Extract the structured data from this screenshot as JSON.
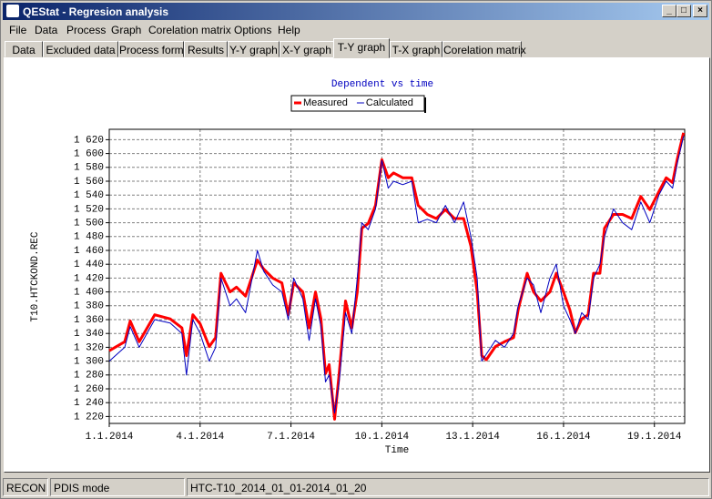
{
  "window": {
    "title": "QEStat - Regresion analysis"
  },
  "menu": [
    "File",
    "Data",
    "Process",
    "Graph",
    "Corelation matrix",
    "Options",
    "Help"
  ],
  "tabs": [
    "Data",
    "Excluded data",
    "Process form",
    "Results",
    "Y-Y graph",
    "X-Y graph",
    "T-Y graph",
    "T-X graph",
    "Corelation matrix"
  ],
  "status": [
    "RECON",
    "PDIS mode",
    "HTC-T10_2014_01_01-2014_01_20"
  ],
  "chart_data": {
    "type": "line",
    "title": "Dependent vs time",
    "x_label": "Time",
    "y_label": "T10.HTCKOND.REC",
    "legend": "top",
    "grid": true,
    "xlim": [
      0,
      19
    ],
    "ylim": [
      1210,
      1635
    ],
    "xticks": [
      {
        "value": 0,
        "label": "1.1.2014"
      },
      {
        "value": 3,
        "label": "4.1.2014"
      },
      {
        "value": 6,
        "label": "7.1.2014"
      },
      {
        "value": 9,
        "label": "10.1.2014"
      },
      {
        "value": 12,
        "label": "13.1.2014"
      },
      {
        "value": 15,
        "label": "16.1.2014"
      },
      {
        "value": 18,
        "label": "19.1.2014"
      }
    ],
    "yticks": [
      {
        "value": 1220,
        "label": "1 220"
      },
      {
        "value": 1240,
        "label": "1 240"
      },
      {
        "value": 1260,
        "label": "1 260"
      },
      {
        "value": 1280,
        "label": "1 280"
      },
      {
        "value": 1300,
        "label": "1 300"
      },
      {
        "value": 1320,
        "label": "1 320"
      },
      {
        "value": 1340,
        "label": "1 340"
      },
      {
        "value": 1360,
        "label": "1 360"
      },
      {
        "value": 1380,
        "label": "1 380"
      },
      {
        "value": 1400,
        "label": "1 400"
      },
      {
        "value": 1420,
        "label": "1 420"
      },
      {
        "value": 1440,
        "label": "1 440"
      },
      {
        "value": 1460,
        "label": "1 460"
      },
      {
        "value": 1480,
        "label": "1 480"
      },
      {
        "value": 1500,
        "label": "1 500"
      },
      {
        "value": 1520,
        "label": "1 520"
      },
      {
        "value": 1540,
        "label": "1 540"
      },
      {
        "value": 1560,
        "label": "1 560"
      },
      {
        "value": 1580,
        "label": "1 580"
      },
      {
        "value": 1600,
        "label": "1 600"
      },
      {
        "value": 1620,
        "label": "1 620"
      }
    ],
    "x": [
      0,
      0.51,
      0.69,
      0.99,
      1.5,
      2.01,
      2.4,
      2.55,
      2.76,
      3,
      3.3,
      3.51,
      3.69,
      3.99,
      4.2,
      4.5,
      4.89,
      5.1,
      5.4,
      5.7,
      5.91,
      6.09,
      6.39,
      6.6,
      6.81,
      6.99,
      7.14,
      7.26,
      7.44,
      7.59,
      7.8,
      8.01,
      8.19,
      8.34,
      8.55,
      8.79,
      9,
      9.21,
      9.39,
      9.69,
      9.99,
      10.2,
      10.5,
      10.8,
      11.1,
      11.4,
      11.7,
      11.94,
      12.15,
      12.3,
      12.45,
      12.75,
      13.05,
      13.35,
      13.5,
      13.8,
      14.01,
      14.25,
      14.55,
      14.76,
      15,
      15.21,
      15.39,
      15.6,
      15.81,
      15.99,
      16.2,
      16.35,
      16.65,
      16.95,
      17.25,
      17.55,
      17.85,
      18.15,
      18.39,
      18.6,
      18.75,
      18.96
    ],
    "series": [
      {
        "name": "Measured",
        "color": "#ff0000",
        "values": [
          1315,
          1328,
          1358,
          1328,
          1367,
          1361,
          1348,
          1308,
          1367,
          1354,
          1321,
          1334,
          1427,
          1400,
          1407,
          1394,
          1446,
          1433,
          1420,
          1413,
          1367,
          1413,
          1400,
          1348,
          1400,
          1361,
          1282,
          1295,
          1216,
          1282,
          1387,
          1348,
          1400,
          1492,
          1499,
          1525,
          1591,
          1565,
          1572,
          1565,
          1565,
          1525,
          1512,
          1506,
          1519,
          1506,
          1506,
          1466,
          1400,
          1308,
          1302,
          1321,
          1328,
          1334,
          1374,
          1427,
          1400,
          1387,
          1400,
          1427,
          1400,
          1374,
          1341,
          1361,
          1367,
          1427,
          1427,
          1492,
          1512,
          1512,
          1506,
          1538,
          1519,
          1545,
          1565,
          1558,
          1591,
          1630
        ]
      },
      {
        "name": "Calculated",
        "color": "#0000c0",
        "values": [
          1300,
          1320,
          1350,
          1320,
          1360,
          1355,
          1340,
          1280,
          1360,
          1340,
          1300,
          1320,
          1420,
          1380,
          1390,
          1370,
          1460,
          1430,
          1410,
          1400,
          1360,
          1420,
          1390,
          1330,
          1390,
          1350,
          1270,
          1280,
          1225,
          1270,
          1370,
          1340,
          1420,
          1500,
          1490,
          1520,
          1590,
          1550,
          1560,
          1555,
          1560,
          1500,
          1505,
          1500,
          1525,
          1500,
          1530,
          1480,
          1420,
          1300,
          1310,
          1330,
          1320,
          1340,
          1380,
          1420,
          1410,
          1370,
          1420,
          1440,
          1380,
          1360,
          1340,
          1370,
          1360,
          1420,
          1440,
          1480,
          1520,
          1500,
          1490,
          1530,
          1500,
          1540,
          1560,
          1550,
          1585,
          1625
        ]
      }
    ]
  }
}
